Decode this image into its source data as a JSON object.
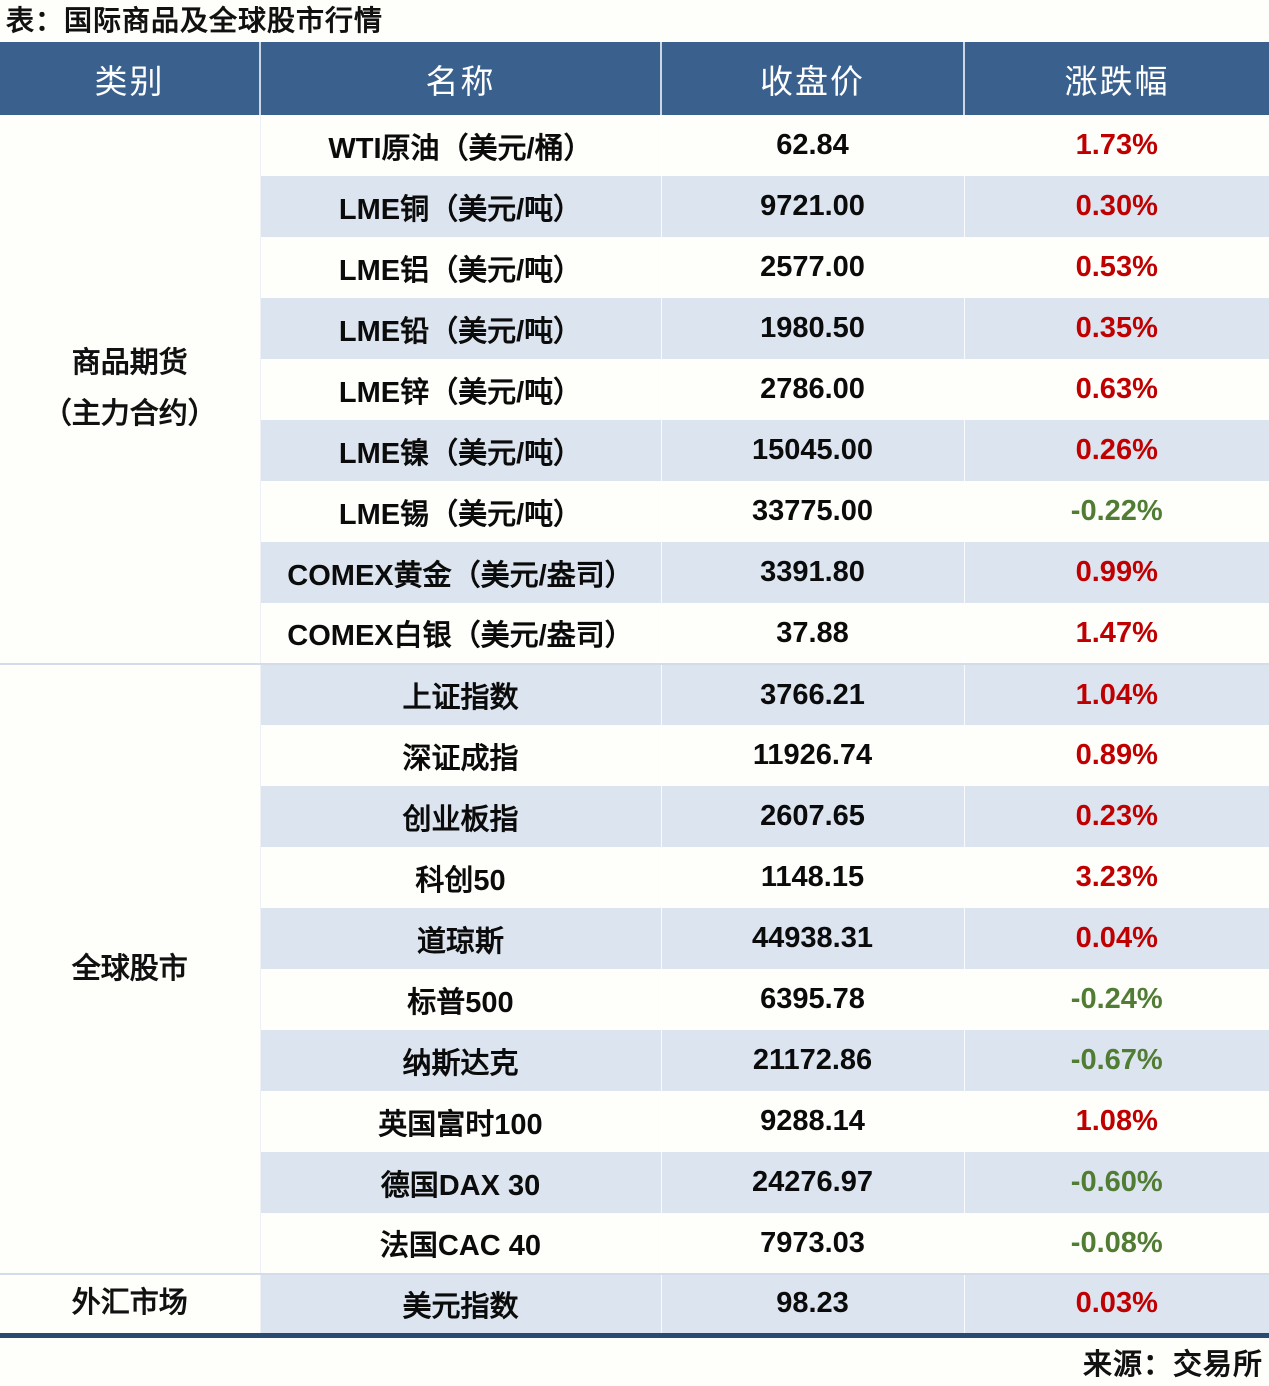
{
  "colors": {
    "header_bg": "#3A608E",
    "header_text": "#FFFFFF",
    "stripe_row": "#DCE4EF",
    "plain_row": "#FEFEFA",
    "up_red": "#C00000",
    "down_green": "#507C33",
    "bottom_border": "#2B4A72",
    "section_divider": "#D3DCE8"
  },
  "chart_data": {
    "type": "table",
    "title": "表：国际商品及全球股市行情",
    "source": "来源：交易所",
    "columns": [
      "类别",
      "名称",
      "收盘价",
      "涨跌幅"
    ],
    "sections": [
      {
        "category": "商品期货\n（主力合约）",
        "rows": [
          {
            "name": "WTI原油（美元/桶）",
            "close": "62.84",
            "change": "1.73%",
            "direction": "up"
          },
          {
            "name": "LME铜（美元/吨）",
            "close": "9721.00",
            "change": "0.30%",
            "direction": "up"
          },
          {
            "name": "LME铝（美元/吨）",
            "close": "2577.00",
            "change": "0.53%",
            "direction": "up"
          },
          {
            "name": "LME铅（美元/吨）",
            "close": "1980.50",
            "change": "0.35%",
            "direction": "up"
          },
          {
            "name": "LME锌（美元/吨）",
            "close": "2786.00",
            "change": "0.63%",
            "direction": "up"
          },
          {
            "name": "LME镍（美元/吨）",
            "close": "15045.00",
            "change": "0.26%",
            "direction": "up"
          },
          {
            "name": "LME锡（美元/吨）",
            "close": "33775.00",
            "change": "-0.22%",
            "direction": "down"
          },
          {
            "name": "COMEX黄金（美元/盎司）",
            "close": "3391.80",
            "change": "0.99%",
            "direction": "up"
          },
          {
            "name": "COMEX白银（美元/盎司）",
            "close": "37.88",
            "change": "1.47%",
            "direction": "up"
          }
        ]
      },
      {
        "category": "全球股市",
        "rows": [
          {
            "name": "上证指数",
            "close": "3766.21",
            "change": "1.04%",
            "direction": "up"
          },
          {
            "name": "深证成指",
            "close": "11926.74",
            "change": "0.89%",
            "direction": "up"
          },
          {
            "name": "创业板指",
            "close": "2607.65",
            "change": "0.23%",
            "direction": "up"
          },
          {
            "name": "科创50",
            "close": "1148.15",
            "change": "3.23%",
            "direction": "up"
          },
          {
            "name": "道琼斯",
            "close": "44938.31",
            "change": "0.04%",
            "direction": "up"
          },
          {
            "name": "标普500",
            "close": "6395.78",
            "change": "-0.24%",
            "direction": "down"
          },
          {
            "name": "纳斯达克",
            "close": "21172.86",
            "change": "-0.67%",
            "direction": "down"
          },
          {
            "name": "英国富时100",
            "close": "9288.14",
            "change": "1.08%",
            "direction": "up"
          },
          {
            "name": "德国DAX 30",
            "close": "24276.97",
            "change": "-0.60%",
            "direction": "down"
          },
          {
            "name": "法国CAC 40",
            "close": "7973.03",
            "change": "-0.08%",
            "direction": "down"
          }
        ]
      },
      {
        "category": "外汇市场",
        "rows": [
          {
            "name": "美元指数",
            "close": "98.23",
            "change": "0.03%",
            "direction": "up"
          }
        ]
      }
    ]
  }
}
